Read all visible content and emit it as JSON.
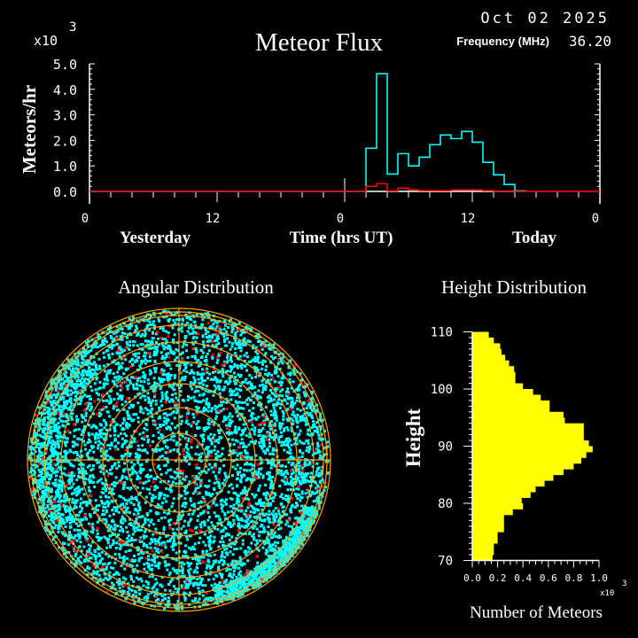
{
  "header": {
    "date": "Oct 02 2025",
    "frequency_label": "Frequency (MHz)",
    "frequency_value": "36.20"
  },
  "colors": {
    "all_meteors": "#00ffff",
    "red_series": "#ff0000",
    "grid": "#ffa500",
    "height_bars": "#ffff00",
    "axes": "#ffffff"
  },
  "chart_data": [
    {
      "type": "line",
      "title": "Meteor Flux",
      "ylabel": "Meteors/hr",
      "xlabel": "Time (hrs UT)",
      "y_multiplier": "x10",
      "y_multiplier_exp": "3",
      "ylim": [
        0,
        5
      ],
      "y_ticks": [
        "0.0",
        "1.0",
        "2.0",
        "3.0",
        "4.0",
        "5.0"
      ],
      "x_ticks": [
        "0",
        "12",
        "0",
        "12",
        "0"
      ],
      "day_labels": [
        "Yesterday",
        "Today"
      ],
      "x_hours": [
        2,
        3,
        4,
        5,
        6,
        7,
        8,
        9,
        10,
        11,
        12,
        13,
        14,
        15,
        16
      ],
      "series": [
        {
          "color": "#00ffff",
          "values": [
            1.69,
            4.61,
            0.68,
            1.48,
            1.0,
            1.34,
            1.83,
            2.21,
            2.07,
            2.35,
            1.93,
            1.14,
            0.65,
            0.27,
            0.02
          ]
        },
        {
          "color": "#ff0000",
          "values": [
            0.2,
            0.3,
            0.02,
            0.13,
            0.06,
            0.03,
            0.03,
            0.03,
            0.06,
            0.06,
            0.06,
            0.03,
            0.0,
            0.0,
            0.0
          ]
        }
      ]
    },
    {
      "type": "scatter",
      "title": "Angular Distribution"
    },
    {
      "type": "bar",
      "orientation": "horizontal",
      "title": "Height Distribution",
      "ylabel": "Height",
      "xlabel": "Number of Meteors",
      "x_multiplier": "x10",
      "x_multiplier_exp": "3",
      "xlim": [
        0,
        1.0
      ],
      "ylim": [
        70,
        110
      ],
      "y_ticks": [
        "70",
        "80",
        "90",
        "100",
        "110"
      ],
      "x_ticks": [
        "0.0",
        "0.2",
        "0.4",
        "0.6",
        "0.8",
        "1.0"
      ],
      "heights": [
        70,
        71,
        72,
        73,
        74,
        75,
        76,
        77,
        78,
        79,
        80,
        81,
        82,
        83,
        84,
        85,
        86,
        87,
        88,
        89,
        90,
        91,
        92,
        93,
        94,
        95,
        96,
        97,
        98,
        99,
        100,
        101,
        102,
        103,
        104,
        105,
        106,
        107,
        108,
        109
      ],
      "values": [
        0.16,
        0.17,
        0.17,
        0.2,
        0.2,
        0.25,
        0.25,
        0.25,
        0.32,
        0.4,
        0.39,
        0.46,
        0.5,
        0.57,
        0.64,
        0.72,
        0.8,
        0.86,
        0.9,
        0.95,
        0.92,
        0.88,
        0.88,
        0.88,
        0.73,
        0.72,
        0.61,
        0.61,
        0.54,
        0.48,
        0.4,
        0.34,
        0.34,
        0.33,
        0.29,
        0.26,
        0.23,
        0.22,
        0.17,
        0.13
      ]
    }
  ]
}
